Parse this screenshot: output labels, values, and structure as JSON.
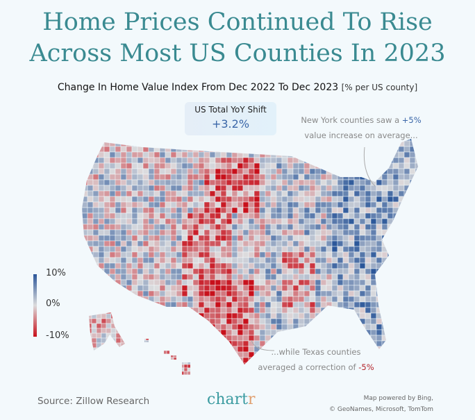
{
  "title": {
    "line1": "Home Prices Continued To Rise",
    "line2": "Across Most US Counties In 2023"
  },
  "subtitle": {
    "main": "Change In Home Value Index From Dec 2022 To Dec 2023",
    "unit": "[% per US county]"
  },
  "badge": {
    "label": "US Total YoY Shift",
    "value": "+3.2%"
  },
  "annotations": {
    "ny": {
      "pre": "New York counties saw a ",
      "value": "+5%",
      "post": "value increase on average..."
    },
    "tx": {
      "pre": "...while Texas counties",
      "post": "averaged a correction of ",
      "value": "-5%"
    }
  },
  "legend": {
    "max": "10%",
    "mid": "0%",
    "min": "-10%",
    "colors": {
      "high": "#2a5699",
      "mid": "#dcdcdc",
      "low": "#c8101b"
    }
  },
  "footer": {
    "source": "Source: Zillow Research",
    "logo": "chartr",
    "credit1": "Map powered by Bing,",
    "credit2": "© GeoNames, Microsoft, TomTom"
  }
}
